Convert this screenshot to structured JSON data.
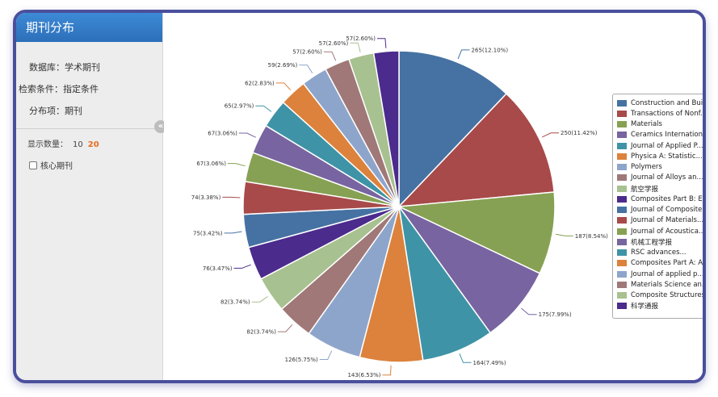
{
  "sidebar": {
    "title": "期刊分布",
    "database_label": "数据库：",
    "database_value": "学术期刊",
    "condition_label": "检索条件：",
    "condition_value": "指定条件",
    "item_label": "分布项：",
    "item_value": "期刊",
    "count_label": "显示数量：",
    "count_options": [
      "10",
      "20"
    ],
    "count_selected": "20",
    "core_label": "核心期刊",
    "collapse_icon": "«"
  },
  "colors": [
    "#4672a3",
    "#a84a4a",
    "#86a153",
    "#7764a0",
    "#3f93a6",
    "#dc823c",
    "#8ea5cb",
    "#a07878",
    "#a8c190",
    "#4b2b8c"
  ],
  "chart_data": {
    "type": "pie",
    "slices": [
      {
        "name": "Construction and Bui...",
        "value": 265,
        "label": "265(12.10%)"
      },
      {
        "name": "Transactions of Nonf...",
        "value": 250,
        "label": "250(11.42%)"
      },
      {
        "name": "Materials",
        "value": 187,
        "label": "187(8.54%)"
      },
      {
        "name": "Ceramics Internation...",
        "value": 175,
        "label": "175(7.99%)"
      },
      {
        "name": "Journal of Applied P...",
        "value": 164,
        "label": "164(7.49%)"
      },
      {
        "name": "Physica A: Statistic...",
        "value": 143,
        "label": "143(6.53%)"
      },
      {
        "name": "Polymers",
        "value": 126,
        "label": "126(5.75%)"
      },
      {
        "name": "Journal of Alloys an...",
        "value": 82,
        "label": "82(3.74%)"
      },
      {
        "name": "航空学报",
        "value": 82,
        "label": "82(3.74%)"
      },
      {
        "name": "Composites Part B: E...",
        "value": 76,
        "label": "76(3.47%)"
      },
      {
        "name": "Journal of Composite...",
        "value": 75,
        "label": "75(3.42%)"
      },
      {
        "name": "Journal of Materials...",
        "value": 74,
        "label": "74(3.38%)"
      },
      {
        "name": "Journal of Acoustica...",
        "value": 67,
        "label": "67(3.06%)"
      },
      {
        "name": "机械工程学报",
        "value": 67,
        "label": "67(3.06%)"
      },
      {
        "name": "RSC advances...",
        "value": 65,
        "label": "65(2.97%)"
      },
      {
        "name": "Composites Part A: A...",
        "value": 62,
        "label": "62(2.83%)"
      },
      {
        "name": "Journal of applied p...",
        "value": 59,
        "label": "59(2.69%)"
      },
      {
        "name": "Materials Science an...",
        "value": 57,
        "label": "57(2.60%)"
      },
      {
        "name": "Composite Structures...",
        "value": 57,
        "label": "57(2.60%)"
      },
      {
        "name": "科学通报",
        "value": 57,
        "label": "57(2.60%)"
      }
    ]
  }
}
